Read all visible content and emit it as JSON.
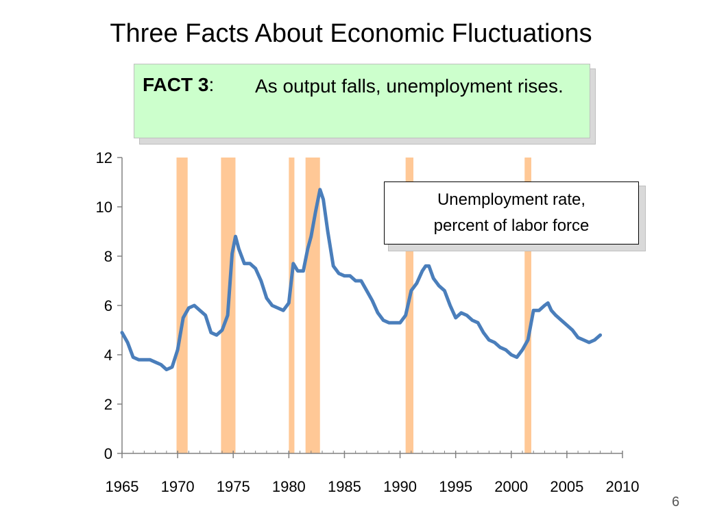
{
  "slide": {
    "title": "Three Facts About Economic Fluctuations",
    "page_number": "6"
  },
  "fact": {
    "label": "FACT 3",
    "colon": ":",
    "text": "As output falls, unemployment rises."
  },
  "legend": {
    "line1": "Unemployment rate,",
    "line2": "percent of labor force"
  },
  "colors": {
    "line": "#4a7ebb",
    "recession": "#ffc896",
    "fact_background": "#ccffcc"
  },
  "chart_data": {
    "type": "line",
    "title": "",
    "xlabel": "",
    "ylabel": "",
    "xlim": [
      1965,
      2010
    ],
    "ylim": [
      0,
      12
    ],
    "x_ticks": [
      1965,
      1970,
      1975,
      1980,
      1985,
      1990,
      1995,
      2000,
      2005,
      2010
    ],
    "y_ticks": [
      0,
      2,
      4,
      6,
      8,
      10,
      12
    ],
    "recessions": [
      [
        1969.9,
        1970.9
      ],
      [
        1973.9,
        1975.2
      ],
      [
        1980.0,
        1980.5
      ],
      [
        1981.5,
        1982.8
      ],
      [
        1990.5,
        1991.2
      ],
      [
        2001.2,
        2001.8
      ]
    ],
    "series": [
      {
        "name": "Unemployment rate, percent of labor force",
        "x": [
          1965.0,
          1965.5,
          1966.0,
          1966.5,
          1967.0,
          1967.5,
          1968.0,
          1968.5,
          1969.0,
          1969.5,
          1970.0,
          1970.5,
          1971.0,
          1971.5,
          1972.0,
          1972.5,
          1973.0,
          1973.5,
          1974.0,
          1974.5,
          1974.9,
          1975.2,
          1975.5,
          1976.0,
          1976.5,
          1977.0,
          1977.5,
          1978.0,
          1978.5,
          1979.0,
          1979.5,
          1980.0,
          1980.4,
          1980.8,
          1981.3,
          1981.7,
          1982.0,
          1982.4,
          1982.8,
          1983.1,
          1983.5,
          1984.0,
          1984.5,
          1985.0,
          1985.5,
          1986.0,
          1986.5,
          1987.0,
          1987.5,
          1988.0,
          1988.5,
          1989.0,
          1989.5,
          1990.0,
          1990.5,
          1991.0,
          1991.5,
          1992.0,
          1992.3,
          1992.6,
          1993.0,
          1993.5,
          1994.0,
          1994.5,
          1995.0,
          1995.5,
          1996.0,
          1996.5,
          1997.0,
          1997.5,
          1998.0,
          1998.5,
          1999.0,
          1999.5,
          2000.0,
          2000.5,
          2001.0,
          2001.5,
          2002.0,
          2002.5,
          2003.0,
          2003.3,
          2003.6,
          2004.0,
          2004.5,
          2005.0,
          2005.5,
          2006.0,
          2006.5,
          2007.0,
          2007.5,
          2008.0
        ],
        "values": [
          4.9,
          4.5,
          3.9,
          3.8,
          3.8,
          3.8,
          3.7,
          3.6,
          3.4,
          3.5,
          4.2,
          5.5,
          5.9,
          6.0,
          5.8,
          5.6,
          4.9,
          4.8,
          5.0,
          5.6,
          8.1,
          8.8,
          8.3,
          7.7,
          7.7,
          7.5,
          7.0,
          6.3,
          6.0,
          5.9,
          5.8,
          6.1,
          7.7,
          7.4,
          7.4,
          8.3,
          8.8,
          9.8,
          10.7,
          10.3,
          9.0,
          7.6,
          7.3,
          7.2,
          7.2,
          7.0,
          7.0,
          6.6,
          6.2,
          5.7,
          5.4,
          5.3,
          5.3,
          5.3,
          5.6,
          6.6,
          6.9,
          7.4,
          7.6,
          7.6,
          7.1,
          6.8,
          6.6,
          6.0,
          5.5,
          5.7,
          5.6,
          5.4,
          5.3,
          4.9,
          4.6,
          4.5,
          4.3,
          4.2,
          4.0,
          3.9,
          4.2,
          4.6,
          5.8,
          5.8,
          6.0,
          6.1,
          5.8,
          5.6,
          5.4,
          5.2,
          5.0,
          4.7,
          4.6,
          4.5,
          4.6,
          4.8
        ]
      }
    ]
  }
}
